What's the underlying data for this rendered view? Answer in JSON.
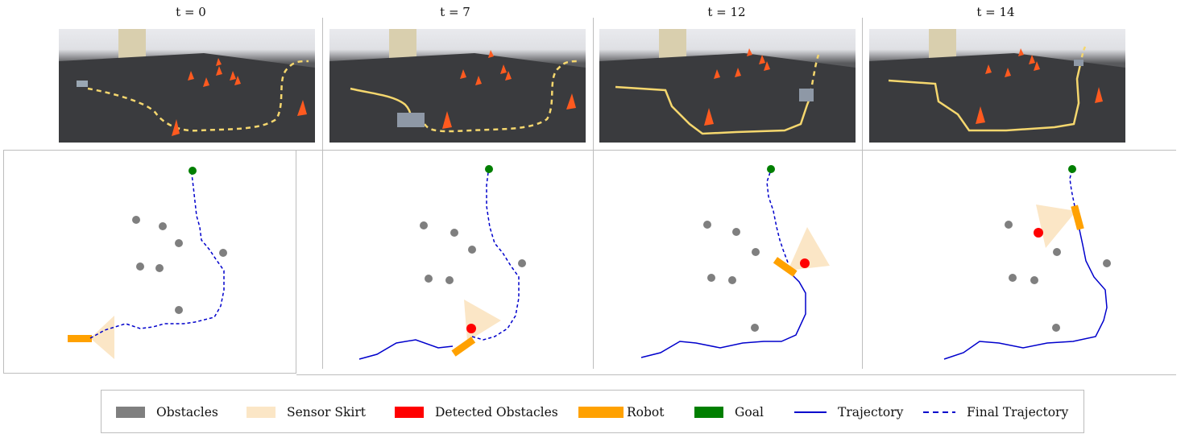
{
  "panels": [
    {
      "time_label": "t = 0"
    },
    {
      "time_label": "t = 7"
    },
    {
      "time_label": "t = 12"
    },
    {
      "time_label": "t = 14"
    }
  ],
  "legend": {
    "obstacles": "Obstacles",
    "sensor_skirt": "Sensor Skirt",
    "detected_obstacles": "Detected Obstacles",
    "robot": "Robot",
    "goal": "Goal",
    "trajectory": "Trajectory",
    "final_trajectory": "Final Trajectory"
  },
  "colors": {
    "obstacle": "#7f7f7f",
    "sensor_skirt": "#fbe6c6",
    "detected": "#ff0000",
    "robot": "#ffa100",
    "goal": "#007f00",
    "trajectory": "#0000cc",
    "photo_path": "#f5d76e",
    "cone": "#ff5a1f"
  }
}
